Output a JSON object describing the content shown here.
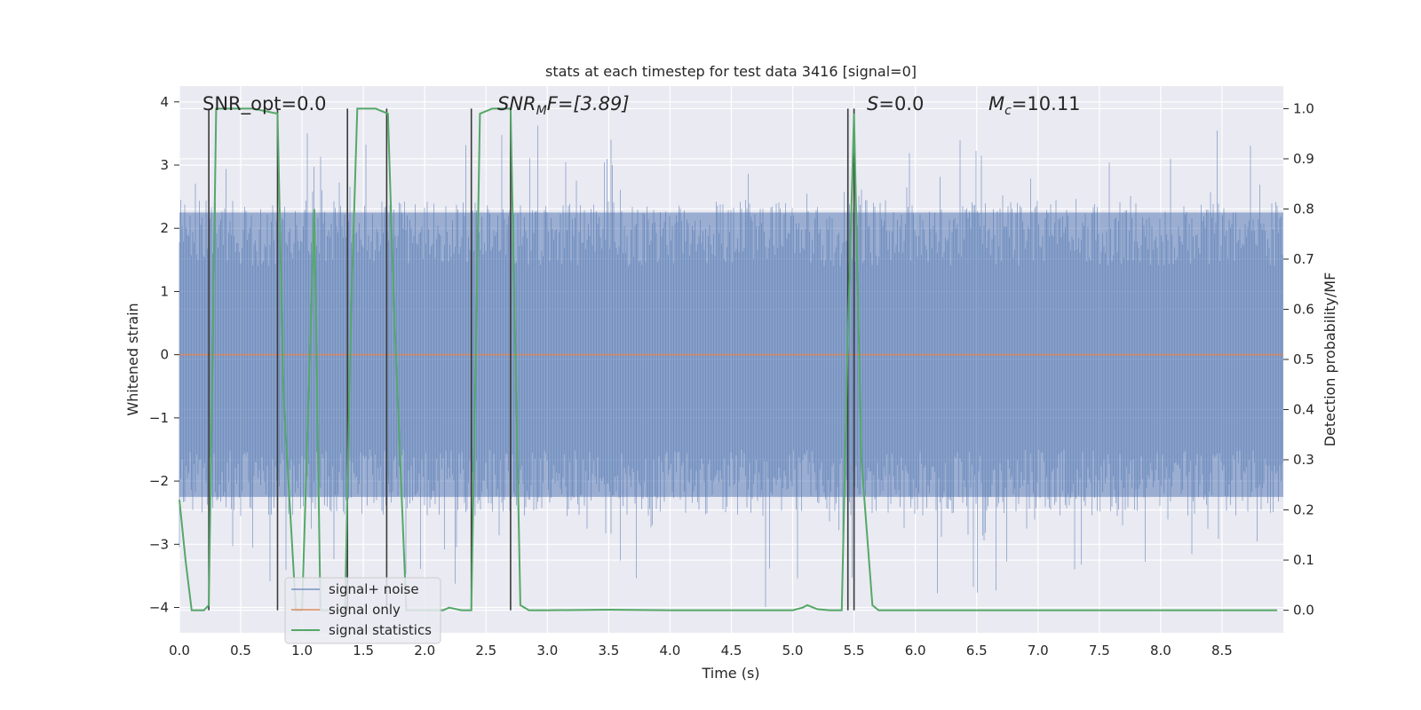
{
  "chart_data": {
    "type": "line",
    "title": "stats at each timestep for test data 3416 [signal=0]",
    "xlabel": "Time (s)",
    "ylabel": "Whitened strain",
    "ylabel_right": "Detection probability/MF",
    "xlim": [
      0.0,
      9.0
    ],
    "ylim": [
      -4.4,
      4.25
    ],
    "ylim_right": [
      -0.045,
      1.045
    ],
    "xticks": [
      "0.0",
      "0.5",
      "1.0",
      "1.5",
      "2.0",
      "2.5",
      "3.0",
      "3.5",
      "4.0",
      "4.5",
      "5.0",
      "5.5",
      "6.0",
      "6.5",
      "7.0",
      "7.5",
      "8.0",
      "8.5"
    ],
    "yticks_left": [
      "4",
      "3",
      "2",
      "1",
      "0",
      "−1",
      "−2",
      "−3",
      "−4"
    ],
    "yticks_right": [
      "1.0",
      "0.9",
      "0.8",
      "0.7",
      "0.6",
      "0.5",
      "0.4",
      "0.3",
      "0.2",
      "0.1",
      "0.0"
    ],
    "annotations": {
      "snr_opt": "SNR_opt=0.0",
      "snr_mf_label": "SNR",
      "snr_mf_sub": "M",
      "snr_mf_rest": "F=[3.89]",
      "s_label": "S",
      "s_rest": "=0.0",
      "mc_label": "M",
      "mc_sub": "c",
      "mc_rest": "=10.11"
    },
    "legend": {
      "placement": "lower-left",
      "entries": [
        "signal+ noise",
        "signal only",
        "signal statistics"
      ]
    },
    "series": [
      {
        "name": "signal+ noise",
        "color": "#4c72b0",
        "description_of_values": "whitened noise samples, roughly uniform band between about -2.5 and 2.5 with spikes up to ~3.7 and down to ~-4.0"
      },
      {
        "name": "signal only",
        "color": "#dd8452",
        "x": [
          0.0,
          9.0
        ],
        "y": [
          0.0,
          0.0
        ]
      },
      {
        "name": "signal statistics",
        "color": "#55a868",
        "x": [
          0.0,
          0.05,
          0.1,
          0.2,
          0.24,
          0.27,
          0.3,
          0.45,
          0.6,
          0.8,
          0.85,
          0.95,
          1.0,
          1.1,
          1.15,
          1.25,
          1.35,
          1.4,
          1.45,
          1.6,
          1.7,
          1.75,
          1.85,
          1.95,
          2.05,
          2.15,
          2.2,
          2.3,
          2.38,
          2.45,
          2.55,
          2.7,
          2.78,
          2.85,
          3.0,
          3.5,
          4.0,
          4.5,
          5.0,
          5.08,
          5.12,
          5.2,
          5.3,
          5.4,
          5.45,
          5.5,
          5.56,
          5.65,
          5.7,
          5.8,
          6.0,
          6.5,
          7.0,
          7.5,
          8.0,
          8.5,
          8.95
        ],
        "y": [
          0.22,
          0.1,
          0.0,
          0.0,
          0.01,
          0.5,
          1.0,
          1.0,
          1.0,
          0.99,
          0.42,
          0.0,
          0.0,
          0.8,
          0.0,
          0.0,
          0.0,
          0.6,
          1.0,
          1.0,
          0.99,
          0.6,
          0.0,
          0.0,
          0.0,
          0.0,
          0.005,
          0.0,
          0.0,
          0.99,
          1.0,
          1.0,
          0.01,
          0.0,
          0.0,
          0.001,
          0.0,
          0.0,
          0.0,
          0.005,
          0.01,
          0.002,
          0.0,
          0.0,
          0.55,
          0.99,
          0.3,
          0.01,
          0.0,
          0.0,
          0.0,
          0.0,
          0.0,
          0.0,
          0.0,
          0.0,
          0.0
        ]
      }
    ],
    "vertical_lines": [
      0.24,
      0.8,
      1.37,
      1.69,
      2.38,
      2.7,
      5.45,
      5.5
    ]
  }
}
